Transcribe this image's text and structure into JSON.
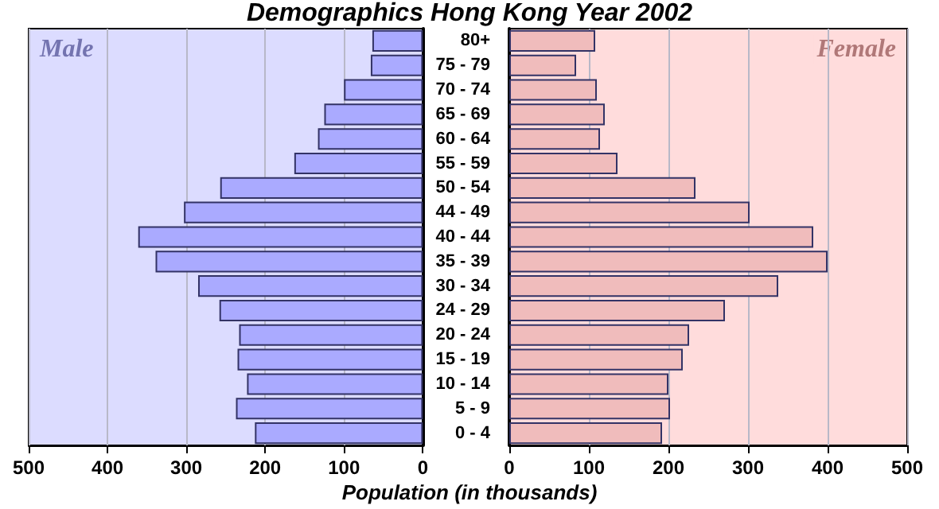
{
  "chart_data": [
    {
      "type": "bar",
      "orientation": "horizontal",
      "title": "Demographics Hong Kong Year 2002",
      "categories": [
        null,
        null,
        null,
        null,
        null,
        null,
        null,
        null,
        null,
        null,
        null,
        null,
        null,
        null,
        null,
        null,
        null
      ],
      "series": [
        {
          "name": "Male",
          "color": "#aaaaff",
          "values": [
            64,
            66,
            100,
            125,
            133,
            163,
            257,
            303,
            361,
            339,
            285,
            258,
            233,
            235,
            223,
            237,
            213
          ]
        }
      ],
      "xlim": [
        500,
        0
      ],
      "xticks": [
        500,
        400,
        300,
        200,
        100,
        0
      ],
      "grid": "x",
      "tick_labels": "x"
    },
    {
      "type": "bar",
      "orientation": "horizontal",
      "xlabel": "Population (in thousands)",
      "categories": [
        "80+",
        "75 - 79",
        "70 - 74",
        "65 - 69",
        "60 - 64",
        "55 - 59",
        "50 - 54",
        "44 - 49",
        "40 - 44",
        "35 - 39",
        "30 - 34",
        "24 - 29",
        "20 - 24",
        "15 - 19",
        "10 - 14",
        "5 - 9",
        "0 - 4"
      ],
      "series": [
        {
          "name": "Female",
          "color": "#f0bcbc",
          "values": [
            108,
            84,
            110,
            120,
            114,
            136,
            234,
            302,
            382,
            400,
            338,
            271,
            226,
            218,
            200,
            202,
            192
          ]
        }
      ],
      "xlim": [
        0,
        500
      ],
      "xticks": [
        0,
        100,
        200,
        300,
        400,
        500
      ],
      "grid": "x"
    }
  ]
}
